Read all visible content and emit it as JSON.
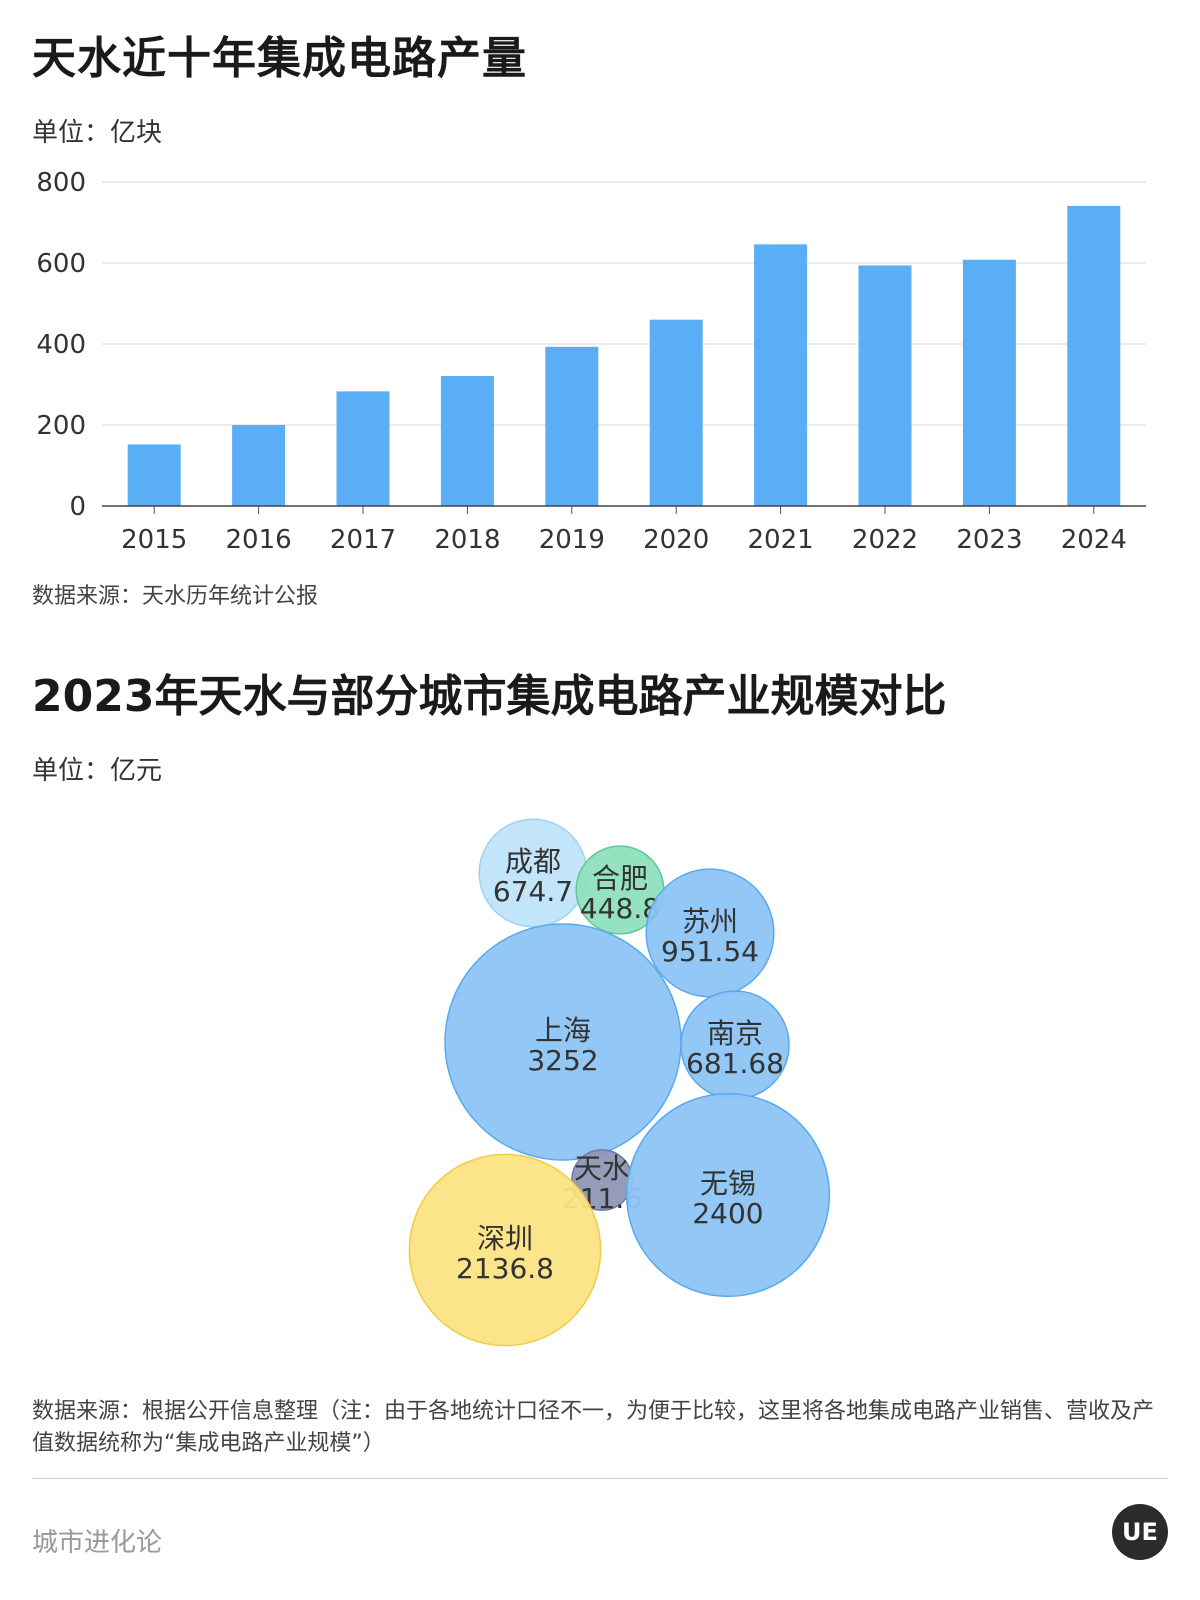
{
  "chart1": {
    "title": "天水近十年集成电路产量",
    "unit": "单位：亿块",
    "source": "数据来源：天水历年统计公报"
  },
  "chart2": {
    "title": "2023年天水与部分城市集成电路产业规模对比",
    "unit": "单位：亿元",
    "source": "数据来源：根据公开信息整理（注：由于各地统计口径不一，为便于比较，这里将各地集成电路产业销售、营收及产值数据统称为“集成电路产业规模”）"
  },
  "footer": {
    "brand": "城市进化论",
    "logo_text": "UE"
  },
  "chart_data": [
    {
      "type": "bar",
      "title": "天水近十年集成电路产量",
      "categories": [
        "2015",
        "2016",
        "2017",
        "2018",
        "2019",
        "2020",
        "2021",
        "2022",
        "2023",
        "2024"
      ],
      "values": [
        152,
        200,
        283,
        321,
        393,
        460,
        646,
        594,
        608,
        741
      ],
      "ylim": [
        0,
        800
      ],
      "yticks": [
        0,
        200,
        400,
        600,
        800
      ],
      "grid": true,
      "color": "#5aaef5"
    },
    {
      "type": "bubble",
      "title": "2023年天水与部分城市集成电路产业规模对比",
      "items": [
        {
          "name": "成都",
          "label": "674.7",
          "value": 674.7,
          "color": "#bfe4fa"
        },
        {
          "name": "合肥",
          "label": "448.8",
          "value": 448.8,
          "color": "#8fe0bd"
        },
        {
          "name": "苏州",
          "label": "951.54",
          "value": 951.54,
          "color": "#8dc4f4"
        },
        {
          "name": "上海",
          "label": "3252",
          "value": 3252,
          "color": "#8dc4f4"
        },
        {
          "name": "南京",
          "label": "681.68",
          "value": 681.68,
          "color": "#8dc4f4"
        },
        {
          "name": "天水",
          "label": "211.6",
          "value": 211.6,
          "color": "#8e97b5"
        },
        {
          "name": "无锡",
          "label": "2400",
          "value": 2400,
          "color": "#8dc4f4"
        },
        {
          "name": "深圳",
          "label": "2136.8",
          "value": 2136.8,
          "color": "#fbe383"
        }
      ]
    }
  ]
}
